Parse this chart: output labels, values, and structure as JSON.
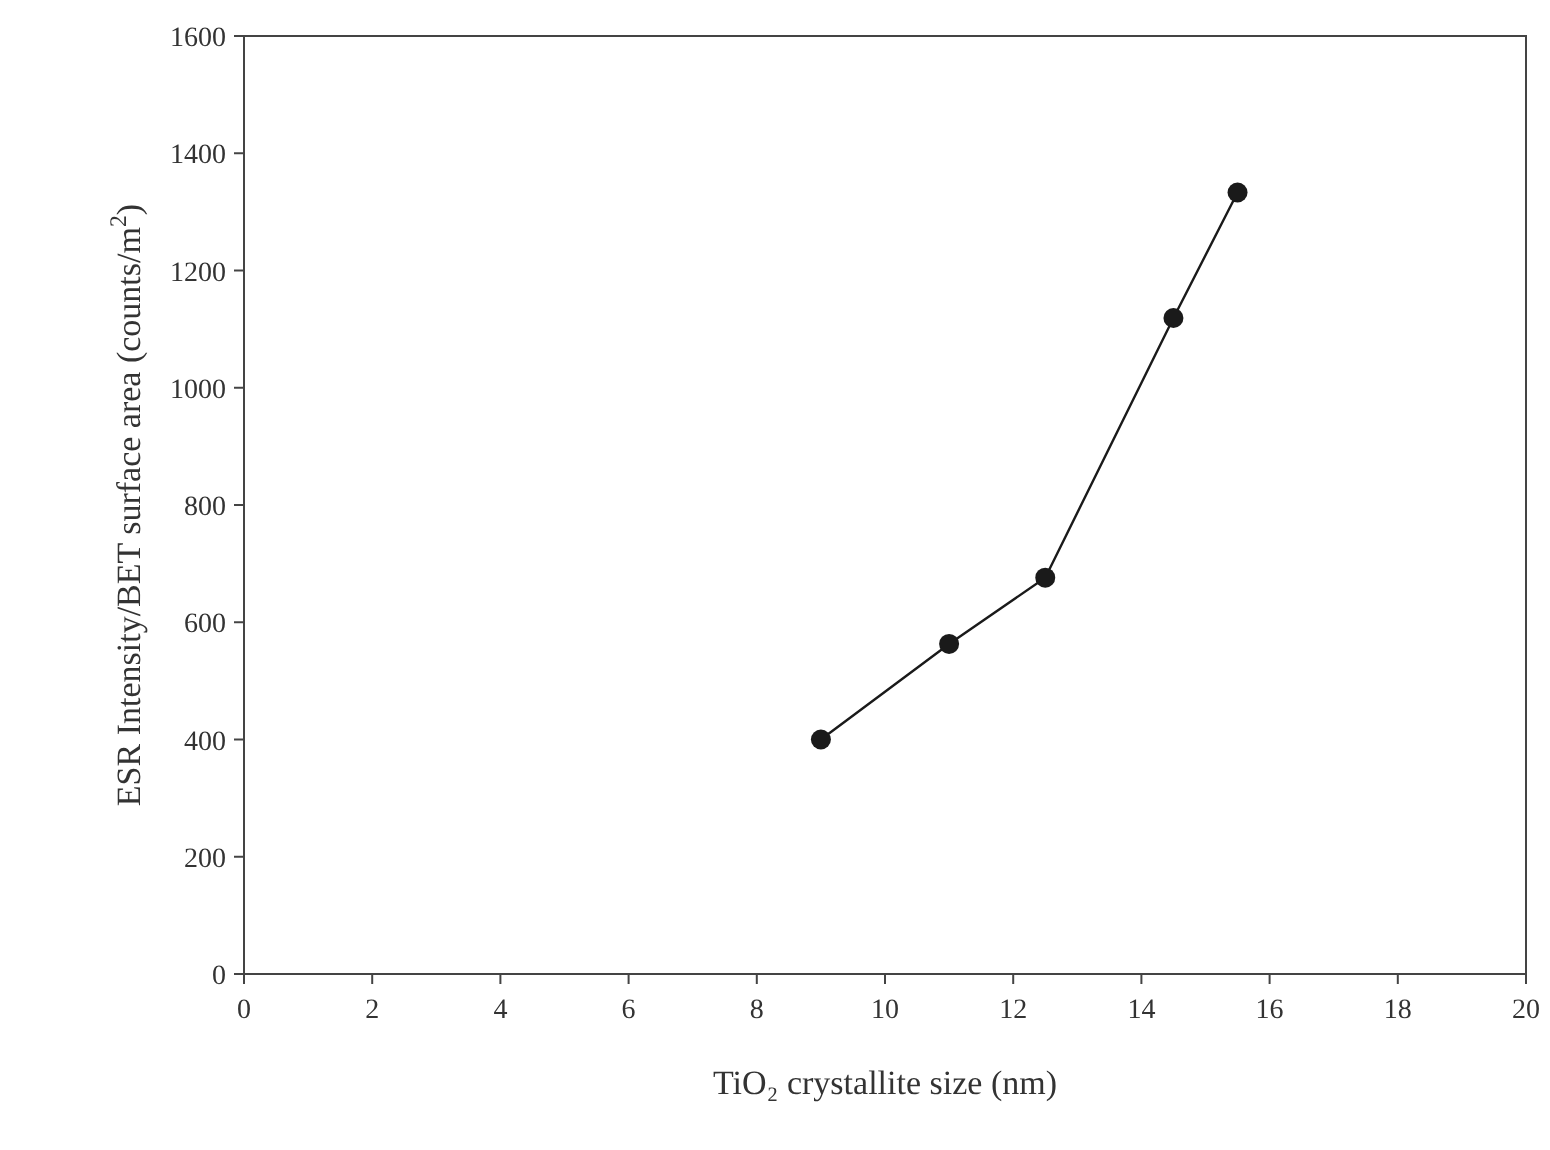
{
  "chart_data": {
    "type": "line",
    "xlabel": "TiO₂ crystallite size (nm)",
    "ylabel": "ESR Intensity/BET surface area (counts/m$^{2}$)",
    "x": [
      9,
      11,
      12.5,
      14.5,
      15.5
    ],
    "series": [
      {
        "color": "#1a1a1a",
        "values": [
          400,
          563,
          676,
          1119,
          1333
        ]
      }
    ],
    "xlim": [
      0,
      20
    ],
    "xticks": [
      0,
      2,
      4,
      6,
      8,
      10,
      12,
      14,
      16,
      18,
      20
    ],
    "ylim": [
      0,
      1600
    ],
    "yticks": [
      0,
      200,
      400,
      600,
      800,
      1000,
      1200,
      1400,
      1600
    ],
    "grid": false,
    "marker": "circle",
    "line_style": "solid"
  }
}
